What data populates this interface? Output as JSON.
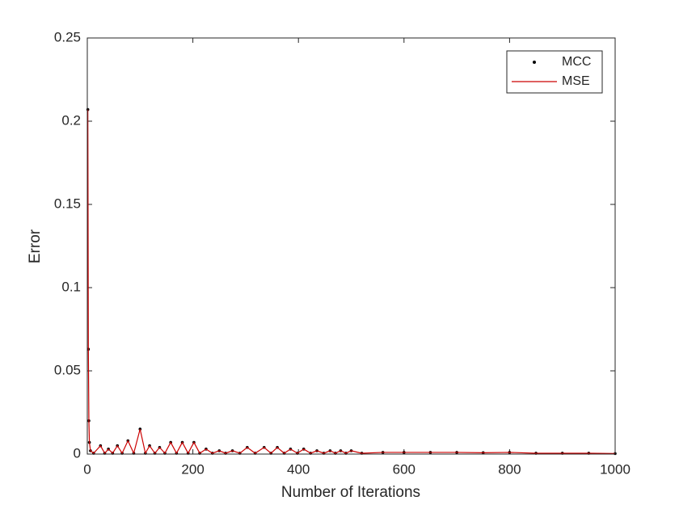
{
  "chart_data": {
    "type": "line",
    "xlabel": "Number of Iterations",
    "ylabel": "Error",
    "x": [
      1,
      2,
      3,
      4,
      6,
      12,
      25,
      33,
      40,
      48,
      57,
      66,
      77,
      88,
      100,
      110,
      118,
      128,
      137,
      147,
      158,
      169,
      180,
      191,
      202,
      213,
      225,
      237,
      250,
      262,
      275,
      289,
      303,
      318,
      335,
      348,
      360,
      373,
      385,
      398,
      410,
      423,
      435,
      448,
      460,
      470,
      480,
      490,
      500,
      520,
      560,
      600,
      650,
      700,
      750,
      800,
      850,
      900,
      950,
      1000
    ],
    "series": [
      {
        "name": "MCC",
        "color": "#000000",
        "marker": "dot",
        "values": [
          0.207,
          0.063,
          0.02,
          0.007,
          0.002,
          0.0005,
          0.005,
          0.0005,
          0.003,
          0.0005,
          0.005,
          0.0005,
          0.008,
          0.0005,
          0.015,
          0.0005,
          0.005,
          0.0005,
          0.004,
          0.0005,
          0.007,
          0.0005,
          0.007,
          0.0005,
          0.007,
          0.0005,
          0.003,
          0.0005,
          0.002,
          0.0005,
          0.002,
          0.0005,
          0.004,
          0.0005,
          0.004,
          0.0005,
          0.004,
          0.0005,
          0.003,
          0.0005,
          0.003,
          0.0005,
          0.002,
          0.0005,
          0.002,
          0.0005,
          0.002,
          0.0005,
          0.002,
          0.0005,
          0.001,
          0.001,
          0.001,
          0.001,
          0.0008,
          0.001,
          0.0005,
          0.0005,
          0.0005,
          0.0003
        ]
      },
      {
        "name": "MSE",
        "color": "#cc0000",
        "marker": "line",
        "values": [
          0.207,
          0.063,
          0.02,
          0.007,
          0.002,
          0.0005,
          0.005,
          0.0005,
          0.003,
          0.0005,
          0.005,
          0.0005,
          0.008,
          0.0005,
          0.015,
          0.0005,
          0.005,
          0.0005,
          0.004,
          0.0005,
          0.007,
          0.0005,
          0.007,
          0.0005,
          0.007,
          0.0005,
          0.003,
          0.0005,
          0.002,
          0.0005,
          0.002,
          0.0005,
          0.004,
          0.0005,
          0.004,
          0.0005,
          0.004,
          0.0005,
          0.003,
          0.0005,
          0.003,
          0.0005,
          0.002,
          0.0005,
          0.002,
          0.0005,
          0.002,
          0.0005,
          0.002,
          0.0005,
          0.001,
          0.001,
          0.001,
          0.001,
          0.0008,
          0.001,
          0.0005,
          0.0005,
          0.0005,
          0.0003
        ]
      }
    ],
    "xlim": [
      0,
      1000
    ],
    "xticks": [
      0,
      200,
      400,
      600,
      800,
      1000
    ],
    "ylim": [
      0,
      0.25
    ],
    "yticks": [
      0,
      0.05,
      0.1,
      0.15,
      0.2,
      0.25
    ],
    "grid": false,
    "legend": "top-right"
  }
}
